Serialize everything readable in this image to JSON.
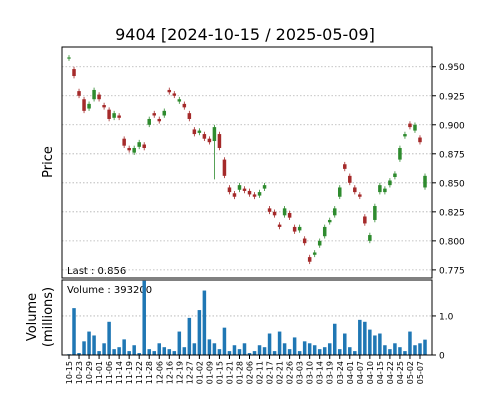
{
  "chart_data": {
    "type": "candlestick",
    "title": "9404   [2024-10-15 / 2025-05-09]",
    "ylabel": "Price",
    "volume_ylabel": [
      "Volume",
      "(millions)"
    ],
    "last_annotation": "Last : 0.856",
    "volume_annotation": "Volume : 393200",
    "categories": [
      "10-15",
      null,
      "10-23",
      null,
      "10-29",
      null,
      "11-01",
      null,
      "11-06",
      null,
      "11-14",
      null,
      "11-19",
      null,
      "11-22",
      null,
      "11-28",
      null,
      "12-06",
      null,
      "12-16",
      null,
      "12-19",
      null,
      "12-27",
      null,
      "01-02",
      null,
      "01-09",
      null,
      "01-15",
      null,
      "01-21",
      null,
      "01-28",
      null,
      "02-06",
      null,
      "02-11",
      null,
      "02-17",
      null,
      "02-21",
      null,
      "02-26",
      null,
      "03-03",
      null,
      "03-10",
      null,
      "03-14",
      null,
      "03-19",
      null,
      "03-24",
      null,
      "04-01",
      null,
      "04-07",
      null,
      "04-10",
      null,
      "04-15",
      null,
      "04-22",
      null,
      "04-25",
      null,
      "05-02",
      null,
      "05-07",
      null
    ],
    "open": [
      0.957,
      0.948,
      0.929,
      0.922,
      0.914,
      0.922,
      0.926,
      0.917,
      0.913,
      0.906,
      0.908,
      0.888,
      0.88,
      0.876,
      0.881,
      0.883,
      0.9,
      0.91,
      0.905,
      0.908,
      0.93,
      0.927,
      0.92,
      0.918,
      0.91,
      0.896,
      0.893,
      0.892,
      0.888,
      0.886,
      0.892,
      0.87,
      0.846,
      0.841,
      0.844,
      0.845,
      0.843,
      0.84,
      0.839,
      0.845,
      0.828,
      0.825,
      0.814,
      0.822,
      0.824,
      0.812,
      0.809,
      0.802,
      0.786,
      0.788,
      0.796,
      0.804,
      0.816,
      0.822,
      0.838,
      0.866,
      0.856,
      0.846,
      0.84,
      0.821,
      0.8,
      0.818,
      0.842,
      0.842,
      0.848,
      0.855,
      0.87,
      0.89,
      0.901,
      0.895,
      0.889,
      0.846
    ],
    "high": [
      0.96,
      0.95,
      0.931,
      0.924,
      0.92,
      0.932,
      0.928,
      0.919,
      0.915,
      0.912,
      0.91,
      0.89,
      0.882,
      0.882,
      0.887,
      0.885,
      0.907,
      0.912,
      0.907,
      0.914,
      0.932,
      0.929,
      0.924,
      0.92,
      0.912,
      0.898,
      0.897,
      0.894,
      0.89,
      0.9,
      0.894,
      0.872,
      0.848,
      0.843,
      0.85,
      0.847,
      0.845,
      0.842,
      0.844,
      0.85,
      0.83,
      0.827,
      0.816,
      0.83,
      0.826,
      0.814,
      0.814,
      0.804,
      0.788,
      0.792,
      0.802,
      0.814,
      0.82,
      0.83,
      0.848,
      0.868,
      0.858,
      0.848,
      0.842,
      0.823,
      0.807,
      0.832,
      0.85,
      0.847,
      0.854,
      0.86,
      0.882,
      0.894,
      0.903,
      0.902,
      0.891,
      0.858
    ],
    "low": [
      0.955,
      0.94,
      0.923,
      0.91,
      0.912,
      0.92,
      0.92,
      0.913,
      0.903,
      0.904,
      0.904,
      0.88,
      0.876,
      0.874,
      0.879,
      0.878,
      0.898,
      0.906,
      0.901,
      0.906,
      0.926,
      0.923,
      0.918,
      0.913,
      0.903,
      0.89,
      0.891,
      0.886,
      0.883,
      0.853,
      0.878,
      0.854,
      0.84,
      0.836,
      0.842,
      0.841,
      0.838,
      0.836,
      0.837,
      0.843,
      0.823,
      0.82,
      0.81,
      0.82,
      0.818,
      0.806,
      0.807,
      0.796,
      0.78,
      0.786,
      0.794,
      0.802,
      0.814,
      0.82,
      0.836,
      0.86,
      0.848,
      0.84,
      0.836,
      0.813,
      0.798,
      0.816,
      0.84,
      0.84,
      0.846,
      0.853,
      0.868,
      0.888,
      0.896,
      0.893,
      0.883,
      0.844
    ],
    "close": [
      0.958,
      0.942,
      0.925,
      0.912,
      0.918,
      0.93,
      0.922,
      0.915,
      0.905,
      0.91,
      0.906,
      0.882,
      0.878,
      0.88,
      0.885,
      0.88,
      0.905,
      0.908,
      0.903,
      0.912,
      0.928,
      0.925,
      0.922,
      0.915,
      0.905,
      0.892,
      0.895,
      0.888,
      0.885,
      0.898,
      0.88,
      0.856,
      0.842,
      0.838,
      0.848,
      0.843,
      0.84,
      0.838,
      0.842,
      0.848,
      0.825,
      0.822,
      0.812,
      0.828,
      0.82,
      0.808,
      0.812,
      0.798,
      0.782,
      0.79,
      0.8,
      0.812,
      0.818,
      0.828,
      0.846,
      0.862,
      0.85,
      0.842,
      0.838,
      0.815,
      0.805,
      0.83,
      0.848,
      0.845,
      0.852,
      0.858,
      0.88,
      0.892,
      0.898,
      0.9,
      0.885,
      0.856
    ],
    "volume": [
      0.02,
      1.2,
      0.05,
      0.35,
      0.6,
      0.5,
      0.1,
      0.3,
      0.85,
      0.15,
      0.2,
      0.4,
      0.1,
      0.25,
      0.05,
      1.9,
      0.15,
      0.1,
      0.3,
      0.2,
      0.15,
      0.1,
      0.6,
      0.2,
      0.95,
      0.3,
      1.15,
      1.65,
      0.4,
      0.3,
      0.15,
      0.7,
      0.1,
      0.25,
      0.15,
      0.3,
      0.05,
      0.1,
      0.25,
      0.2,
      0.55,
      0.1,
      0.6,
      0.3,
      0.15,
      0.45,
      0.1,
      0.35,
      0.3,
      0.25,
      0.15,
      0.2,
      0.3,
      0.8,
      0.15,
      0.55,
      0.2,
      0.1,
      0.9,
      0.85,
      0.65,
      0.5,
      0.55,
      0.25,
      0.15,
      0.3,
      0.2,
      0.1,
      0.6,
      0.25,
      0.3,
      0.393
    ],
    "up_color": "#2e8b2e",
    "down_color": "#a52a2a",
    "volume_color": "#1f77b4",
    "ylim": [
      0.768,
      0.967
    ],
    "yticks": [
      0.775,
      {
        "value": 0.8,
        "label": "0.800"
      },
      0.825,
      {
        "value": 0.85,
        "label": "0.850"
      },
      0.875,
      {
        "value": 0.9,
        "label": "0.900"
      },
      0.925,
      {
        "value": 0.95,
        "label": "0.950"
      }
    ],
    "volume_ylim": [
      0,
      1.92
    ],
    "volume_yticks": [
      0,
      {
        "value": 1,
        "label": "1.0"
      }
    ],
    "grid": true
  }
}
